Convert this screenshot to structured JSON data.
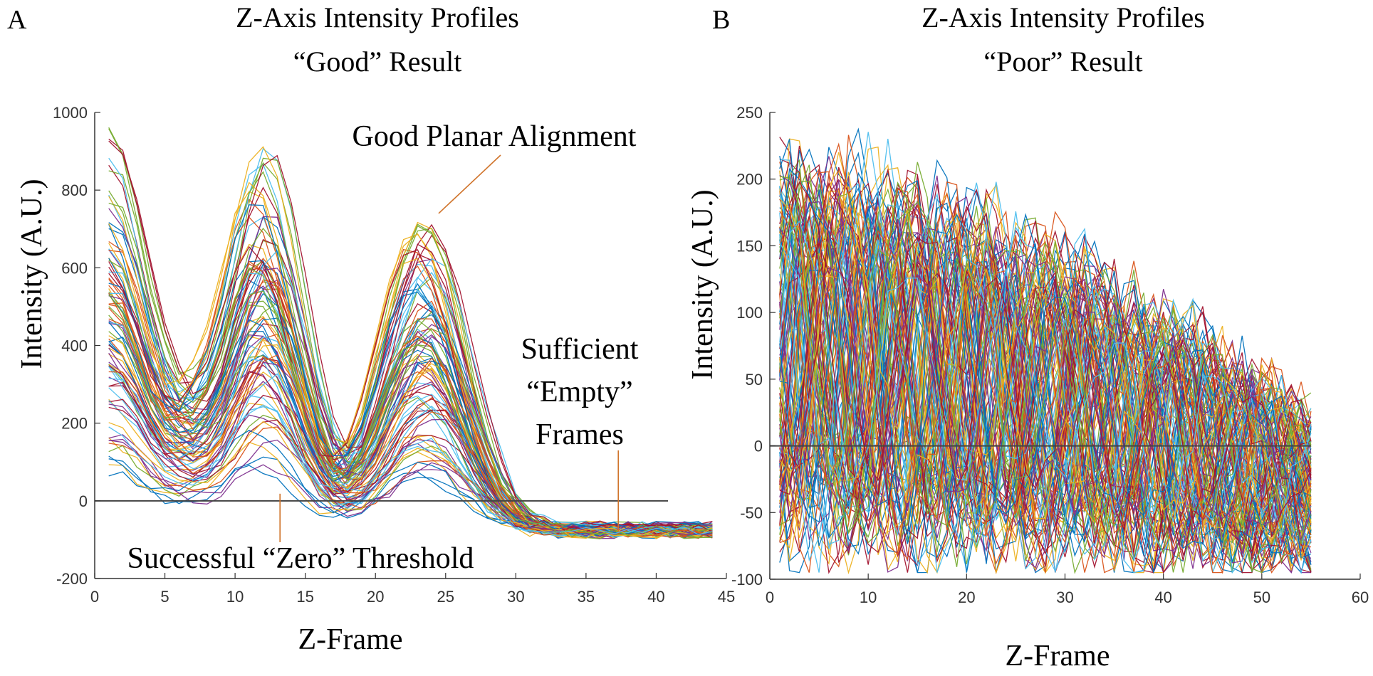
{
  "chart_data": [
    {
      "type": "line",
      "panel_label": "A",
      "title": [
        "Z-Axis Intensity Profiles",
        "“Good” Result"
      ],
      "xlabel": "Z-Frame",
      "ylabel": "Intensity (A.U.)",
      "xlim": [
        0,
        45
      ],
      "ylim": [
        -200,
        1000
      ],
      "xticks": [
        0,
        5,
        10,
        15,
        20,
        25,
        30,
        35,
        40,
        45
      ],
      "yticks": [
        -200,
        0,
        200,
        400,
        600,
        800,
        1000
      ],
      "xtick_labels": [
        "0",
        "5",
        "10",
        "15",
        "20",
        "25",
        "30",
        "35",
        "40",
        "45"
      ],
      "ytick_labels": [
        "-200",
        "0",
        "200",
        "400",
        "600",
        "800",
        "1000"
      ],
      "frames": [
        1,
        44
      ],
      "profile_count": 90,
      "mean_profile": {
        "peaks": [
          {
            "x": 1,
            "y": 520
          },
          {
            "x": 12,
            "y": 520
          },
          {
            "x": 23.5,
            "y": 430
          }
        ],
        "troughs": [
          {
            "x": 6.5,
            "y": 110
          },
          {
            "x": 17.5,
            "y": 80
          }
        ],
        "floor": -75
      },
      "reference_line": 0,
      "annotations": [
        {
          "text": [
            "Good Planar Alignment"
          ],
          "points_to": {
            "x": 24.5,
            "y": 740
          }
        },
        {
          "text": [
            "Sufficient",
            "“Empty”",
            "Frames"
          ],
          "points_to": {
            "x": 37.3,
            "y": -80
          }
        },
        {
          "text": [
            "Successful “Zero” Threshold"
          ],
          "points_to": {
            "x": 13.2,
            "y": 0
          }
        }
      ]
    },
    {
      "type": "line",
      "panel_label": "B",
      "title": [
        "Z-Axis Intensity Profiles",
        "“Poor” Result"
      ],
      "xlabel": "Z-Frame",
      "ylabel": "Intensity (A.U.)",
      "xlim": [
        0,
        60
      ],
      "ylim": [
        -100,
        250
      ],
      "xticks": [
        0,
        10,
        20,
        30,
        40,
        50,
        60
      ],
      "yticks": [
        -100,
        -50,
        0,
        50,
        100,
        150,
        200,
        250
      ],
      "xtick_labels": [
        "0",
        "10",
        "20",
        "30",
        "40",
        "50",
        "60"
      ],
      "ytick_labels": [
        "-100",
        "-50",
        "0",
        "50",
        "100",
        "150",
        "200",
        "250"
      ],
      "frames": [
        1,
        55
      ],
      "profile_count": 140,
      "envelope": {
        "start_max": 235,
        "end_max": 30,
        "min": -95
      },
      "reference_line": 0
    }
  ],
  "palette": [
    "#0072BD",
    "#D95319",
    "#EDB120",
    "#7E2F8E",
    "#77AC30",
    "#4DBEEE",
    "#A2142F"
  ]
}
